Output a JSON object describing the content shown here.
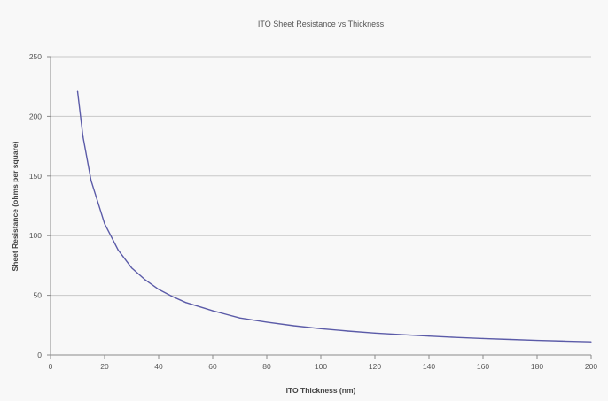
{
  "chart_data": {
    "type": "line",
    "title": "ITO Sheet Resistance vs Thickness",
    "xlabel": "ITO Thickness (nm)",
    "ylabel": "Sheet Resistance (ohms per square)",
    "xlim": [
      0,
      200
    ],
    "ylim": [
      0,
      250
    ],
    "x_ticks": [
      0,
      20,
      40,
      60,
      80,
      100,
      120,
      140,
      160,
      180,
      200
    ],
    "y_ticks": [
      0,
      50,
      100,
      150,
      200,
      250
    ],
    "grid": "horizontal",
    "legend": "none",
    "series": [
      {
        "color": "#5b5ba8",
        "x": [
          10,
          12,
          15,
          20,
          25,
          30,
          35,
          40,
          45,
          50,
          60,
          70,
          80,
          90,
          100,
          110,
          120,
          130,
          140,
          150,
          160,
          170,
          180,
          190,
          200
        ],
        "y": [
          221,
          183,
          146,
          110,
          88,
          73,
          63,
          55,
          49,
          44,
          37,
          31,
          27.5,
          24.5,
          22,
          20,
          18.3,
          17,
          15.8,
          14.7,
          13.8,
          13,
          12.2,
          11.6,
          11
        ]
      }
    ]
  },
  "colors": {
    "background": "#f8f8f8",
    "gridline": "#c8c8c8",
    "axis": "#8a8a8a",
    "series": "#5b5ba8"
  }
}
